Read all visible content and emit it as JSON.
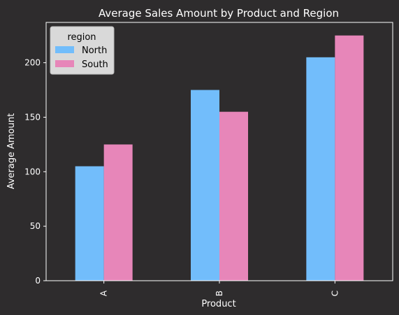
{
  "chart_data": {
    "type": "bar",
    "title": "Average Sales Amount by Product and Region",
    "xlabel": "Product",
    "ylabel": "Average Amount",
    "categories": [
      "A",
      "B",
      "C"
    ],
    "series": [
      {
        "name": "North",
        "values": [
          105,
          175,
          205
        ],
        "color": "#72bdfb"
      },
      {
        "name": "South",
        "values": [
          125,
          155,
          225
        ],
        "color": "#e786b9"
      }
    ],
    "ylim": [
      0,
      237
    ],
    "yticks": [
      0,
      50,
      100,
      150,
      200
    ],
    "legend": {
      "title": "region",
      "placement": "top-left"
    },
    "grid": false,
    "colors": {
      "background": "#2e2c2d",
      "axis": "#ffffff",
      "legend_bg": "#d9d9d9",
      "legend_text": "#000000"
    }
  }
}
